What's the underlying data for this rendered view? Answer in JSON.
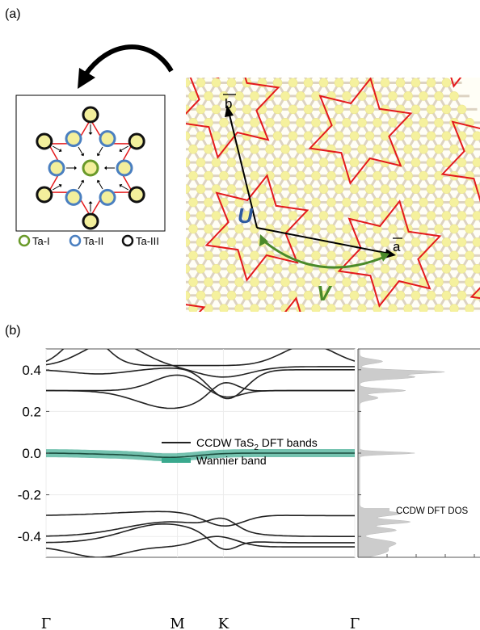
{
  "panel_a": {
    "label": "(a)",
    "legend": [
      {
        "label": "Ta-I",
        "color": "#6a9a2a"
      },
      {
        "label": "Ta-II",
        "color": "#4a7fc0"
      },
      {
        "label": "Ta-III",
        "color": "#111111"
      }
    ],
    "vector_b": "b",
    "vector_a": "a",
    "label_U": "U",
    "label_V": "V",
    "colors": {
      "star": "#e41a1c",
      "lattice": "#f2ee9a",
      "bond": "#d8cfbf",
      "U": "#2e5aa0",
      "V": "#4a8a2a"
    }
  },
  "panel_b": {
    "label": "(b)",
    "legend_dft": "CCDW TaS",
    "legend_dft_sub": "2",
    "legend_dft_tail": " DFT bands",
    "legend_wannier": "Wannier band",
    "legend_dos": "CCDW DFT DOS",
    "colors": {
      "dft": "#222222",
      "wannier": "#3aa98e",
      "dos": "#cccccc"
    }
  },
  "chart_data": {
    "type": "line",
    "ylim": [
      -0.5,
      0.5
    ],
    "yticks": [
      "0.4",
      "0.2",
      "0.0",
      "-0.2",
      "-0.4"
    ],
    "ytick_values": [
      0.4,
      0.2,
      0.0,
      -0.2,
      -0.4
    ],
    "xticks": [
      "Γ",
      "M",
      "K",
      "Γ"
    ],
    "xtick_values": [
      0,
      1,
      1.35,
      2.35
    ],
    "series": [
      {
        "name": "CCDW TaS2 DFT bands",
        "x": [
          0,
          0.3,
          0.6,
          1.0,
          1.35,
          1.8,
          2.35
        ],
        "y": [
          0.3,
          0.3,
          0.32,
          0.37,
          0.26,
          0.3,
          0.3
        ]
      },
      {
        "name": "Wannier band",
        "x": [
          0,
          0.4,
          0.8,
          1.0,
          1.35,
          1.8,
          2.35
        ],
        "y": [
          0.0,
          -0.005,
          -0.015,
          -0.02,
          -0.005,
          0.0,
          0.0
        ]
      }
    ]
  }
}
